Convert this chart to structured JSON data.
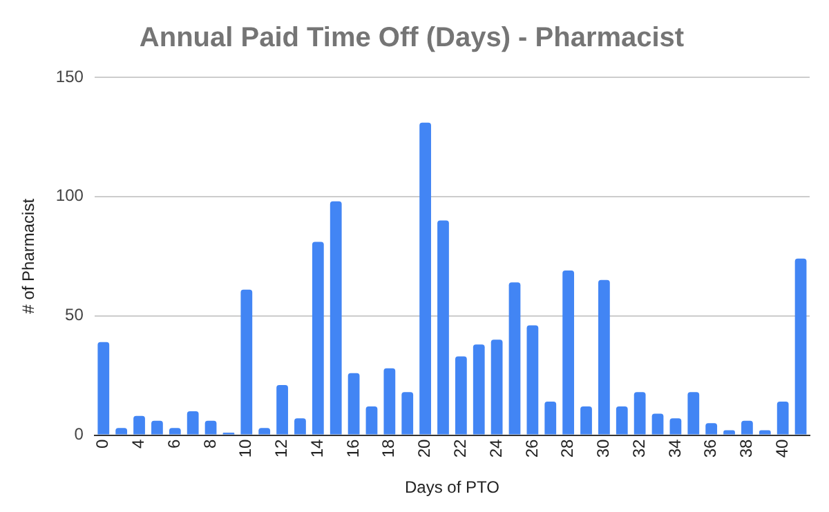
{
  "chart_data": {
    "type": "bar",
    "title": "Annual Paid Time Off (Days) - Pharmacist",
    "xlabel": "Days of PTO",
    "ylabel": "# of Pharmacist",
    "categories": [
      "0",
      null,
      "4",
      null,
      "6",
      null,
      "8",
      null,
      "10",
      null,
      "12",
      null,
      "14",
      null,
      "16",
      null,
      "18",
      null,
      "20",
      null,
      "22",
      null,
      "24",
      null,
      "26",
      null,
      "28",
      null,
      "30",
      null,
      "32",
      null,
      "34",
      null,
      "36",
      null,
      "38",
      null,
      "40",
      null
    ],
    "values": [
      39,
      3,
      8,
      6,
      3,
      10,
      6,
      1,
      61,
      3,
      21,
      7,
      81,
      98,
      26,
      12,
      28,
      18,
      131,
      90,
      33,
      38,
      40,
      64,
      46,
      14,
      69,
      12,
      65,
      12,
      18,
      9,
      7,
      18,
      5,
      2,
      6,
      2,
      14,
      74
    ],
    "color": "#4285f4",
    "ylim": [
      0,
      150
    ],
    "yticks": [
      0,
      50,
      100,
      150
    ],
    "grid": "y"
  }
}
